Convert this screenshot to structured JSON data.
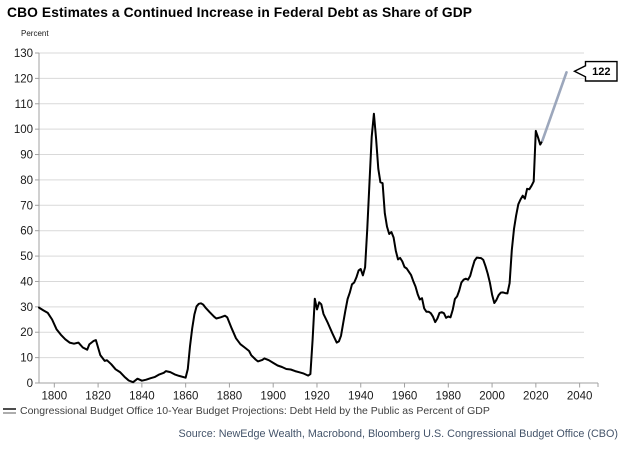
{
  "colors": {
    "history_line": "#000000",
    "projection_line": "#9CA7BC",
    "gridline": "#D9D9D9",
    "axis": "#A0A0A0",
    "tick_label": "#1A1A1A",
    "title_text": "#000000",
    "legend_text": "#3F3F3F",
    "legend_marker_top": "#4D4D4D",
    "legend_marker_bottom": "#ADADAD",
    "source_text": "#44546A",
    "annotation_border": "#000000",
    "annotation_bg": "#FFFFFF",
    "annotation_text": "#000000"
  },
  "chart_data": {
    "type": "line",
    "title": "CBO Estimates a Continued Increase in Federal Debt as Share of GDP",
    "ylabel": "Percent",
    "xlabel": "",
    "xlim": [
      1793,
      2042
    ],
    "ylim": [
      0,
      130
    ],
    "x_ticks": [
      1800,
      1820,
      1840,
      1860,
      1880,
      1900,
      1920,
      1940,
      1960,
      1980,
      2000,
      2020,
      2040
    ],
    "y_ticks": [
      0,
      10,
      20,
      30,
      40,
      50,
      60,
      70,
      80,
      90,
      100,
      110,
      120,
      130
    ],
    "grid": "horizontal",
    "legend_position": "bottom-left",
    "legend_entries": [
      "Congressional Budget Office 10-Year Budget Projections: Debt Held by the Public as Percent of GDP"
    ],
    "source_note": "Source: NewEdge Wealth, Macrobond, Bloomberg U.S. Congressional Budget Office (CBO)",
    "annotation": {
      "text": "122",
      "anchor": [
        2034,
        122.4
      ]
    },
    "series": [
      {
        "name": "history",
        "points": [
          [
            1793,
            29.7
          ],
          [
            1795,
            28.6
          ],
          [
            1797,
            27.6
          ],
          [
            1799,
            25.0
          ],
          [
            1801,
            21.2
          ],
          [
            1803,
            19.0
          ],
          [
            1805,
            17.2
          ],
          [
            1807,
            15.9
          ],
          [
            1809,
            15.5
          ],
          [
            1811,
            15.9
          ],
          [
            1813,
            14.0
          ],
          [
            1815,
            13.1
          ],
          [
            1816,
            15.2
          ],
          [
            1818,
            16.6
          ],
          [
            1819,
            16.9
          ],
          [
            1821,
            11.0
          ],
          [
            1823,
            8.7
          ],
          [
            1824,
            9.0
          ],
          [
            1826,
            7.4
          ],
          [
            1828,
            5.4
          ],
          [
            1830,
            4.3
          ],
          [
            1832,
            2.5
          ],
          [
            1834,
            1.0
          ],
          [
            1836,
            0.3
          ],
          [
            1838,
            1.7
          ],
          [
            1840,
            0.9
          ],
          [
            1842,
            1.3
          ],
          [
            1844,
            1.9
          ],
          [
            1846,
            2.4
          ],
          [
            1848,
            3.4
          ],
          [
            1850,
            4.0
          ],
          [
            1851,
            4.7
          ],
          [
            1853,
            4.3
          ],
          [
            1855,
            3.4
          ],
          [
            1857,
            2.8
          ],
          [
            1860,
            2.1
          ],
          [
            1861,
            5.5
          ],
          [
            1862,
            14.5
          ],
          [
            1863,
            21.5
          ],
          [
            1864,
            27.0
          ],
          [
            1865,
            30.2
          ],
          [
            1866,
            31.2
          ],
          [
            1867,
            31.4
          ],
          [
            1868,
            30.9
          ],
          [
            1869,
            29.8
          ],
          [
            1871,
            27.9
          ],
          [
            1873,
            26.1
          ],
          [
            1874,
            25.4
          ],
          [
            1876,
            25.9
          ],
          [
            1878,
            26.5
          ],
          [
            1879,
            25.9
          ],
          [
            1881,
            21.6
          ],
          [
            1883,
            17.6
          ],
          [
            1885,
            15.3
          ],
          [
            1887,
            14.0
          ],
          [
            1889,
            12.6
          ],
          [
            1890,
            10.9
          ],
          [
            1892,
            9.2
          ],
          [
            1893,
            8.5
          ],
          [
            1895,
            9.1
          ],
          [
            1896,
            9.7
          ],
          [
            1898,
            9.0
          ],
          [
            1900,
            7.9
          ],
          [
            1902,
            6.9
          ],
          [
            1904,
            6.3
          ],
          [
            1906,
            5.5
          ],
          [
            1908,
            5.3
          ],
          [
            1910,
            4.7
          ],
          [
            1912,
            4.2
          ],
          [
            1914,
            3.7
          ],
          [
            1916,
            2.9
          ],
          [
            1917,
            3.5
          ],
          [
            1918,
            17.0
          ],
          [
            1919,
            33.2
          ],
          [
            1920,
            29.0
          ],
          [
            1921,
            31.8
          ],
          [
            1922,
            31.0
          ],
          [
            1923,
            27.2
          ],
          [
            1925,
            23.6
          ],
          [
            1927,
            19.6
          ],
          [
            1929,
            15.9
          ],
          [
            1930,
            16.4
          ],
          [
            1931,
            18.6
          ],
          [
            1932,
            23.6
          ],
          [
            1933,
            28.6
          ],
          [
            1934,
            33.1
          ],
          [
            1935,
            35.6
          ],
          [
            1936,
            38.9
          ],
          [
            1937,
            39.6
          ],
          [
            1938,
            41.6
          ],
          [
            1939,
            44.3
          ],
          [
            1940,
            44.9
          ],
          [
            1941,
            42.4
          ],
          [
            1942,
            45.6
          ],
          [
            1943,
            61.0
          ],
          [
            1944,
            79.1
          ],
          [
            1945,
            97.0
          ],
          [
            1946,
            106.1
          ],
          [
            1947,
            96.2
          ],
          [
            1948,
            84.4
          ],
          [
            1949,
            79.1
          ],
          [
            1950,
            78.7
          ],
          [
            1951,
            66.9
          ],
          [
            1952,
            61.6
          ],
          [
            1953,
            58.7
          ],
          [
            1954,
            59.5
          ],
          [
            1955,
            57.3
          ],
          [
            1956,
            52.1
          ],
          [
            1957,
            48.7
          ],
          [
            1958,
            49.3
          ],
          [
            1959,
            47.9
          ],
          [
            1960,
            45.7
          ],
          [
            1961,
            45.1
          ],
          [
            1962,
            43.8
          ],
          [
            1963,
            42.5
          ],
          [
            1964,
            40.1
          ],
          [
            1965,
            38.0
          ],
          [
            1966,
            35.0
          ],
          [
            1967,
            32.9
          ],
          [
            1968,
            33.4
          ],
          [
            1969,
            29.4
          ],
          [
            1970,
            28.1
          ],
          [
            1971,
            28.1
          ],
          [
            1972,
            27.5
          ],
          [
            1973,
            26.1
          ],
          [
            1974,
            24.0
          ],
          [
            1975,
            25.4
          ],
          [
            1976,
            27.6
          ],
          [
            1977,
            27.9
          ],
          [
            1978,
            27.5
          ],
          [
            1979,
            25.7
          ],
          [
            1980,
            26.2
          ],
          [
            1981,
            25.9
          ],
          [
            1982,
            28.8
          ],
          [
            1983,
            33.1
          ],
          [
            1984,
            34.1
          ],
          [
            1985,
            36.4
          ],
          [
            1986,
            39.6
          ],
          [
            1987,
            40.7
          ],
          [
            1988,
            41.1
          ],
          [
            1989,
            40.7
          ],
          [
            1990,
            42.2
          ],
          [
            1991,
            45.4
          ],
          [
            1992,
            48.2
          ],
          [
            1993,
            49.4
          ],
          [
            1994,
            49.3
          ],
          [
            1995,
            49.2
          ],
          [
            1996,
            48.5
          ],
          [
            1997,
            46.0
          ],
          [
            1998,
            43.1
          ],
          [
            1999,
            39.5
          ],
          [
            2000,
            34.8
          ],
          [
            2001,
            31.5
          ],
          [
            2002,
            32.7
          ],
          [
            2003,
            34.6
          ],
          [
            2004,
            35.6
          ],
          [
            2005,
            35.7
          ],
          [
            2006,
            35.4
          ],
          [
            2007,
            35.3
          ],
          [
            2008,
            39.3
          ],
          [
            2009,
            52.3
          ],
          [
            2010,
            60.7
          ],
          [
            2011,
            65.9
          ],
          [
            2012,
            70.4
          ],
          [
            2013,
            72.3
          ],
          [
            2014,
            73.8
          ],
          [
            2015,
            72.6
          ],
          [
            2016,
            76.5
          ],
          [
            2017,
            76.3
          ],
          [
            2018,
            77.7
          ],
          [
            2019,
            79.4
          ],
          [
            2020,
            99.3
          ],
          [
            2021,
            96.8
          ],
          [
            2022,
            93.9
          ],
          [
            2023,
            95.5
          ]
        ]
      },
      {
        "name": "projection",
        "points": [
          [
            2023,
            95.5
          ],
          [
            2034,
            122.4
          ]
        ]
      }
    ]
  }
}
